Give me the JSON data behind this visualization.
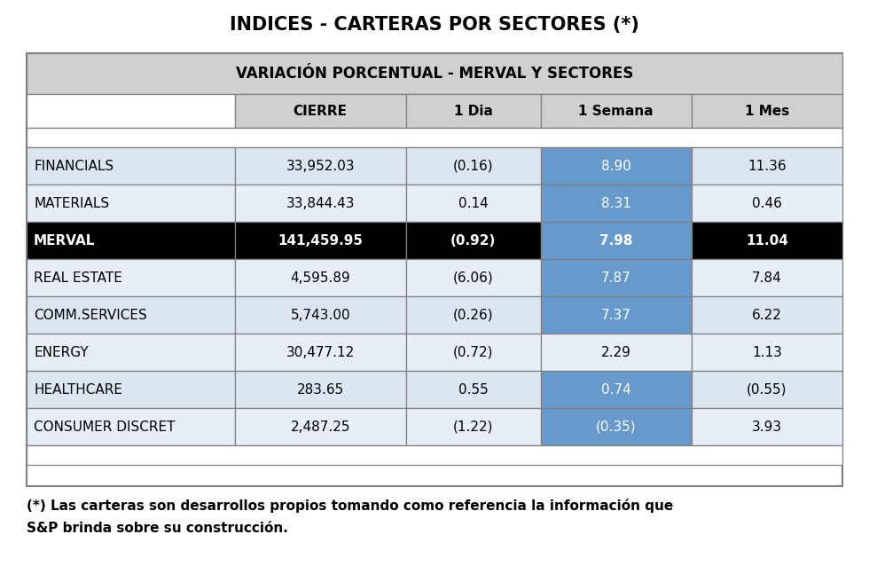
{
  "title": "INDICES - CARTERAS POR SECTORES (*)",
  "subtitle": "VARIACIÓN PORCENTUAL - MERVAL Y SECTORES",
  "col_headers": [
    "",
    "CIERRE",
    "1 Dia",
    "1 Semana",
    "1 Mes"
  ],
  "rows": [
    {
      "label": "FINANCIALS",
      "cierre": "33,952.03",
      "dia": "(0.16)",
      "semana": "8.90",
      "mes": "11.36",
      "is_merval": false,
      "semana_blue": true
    },
    {
      "label": "MATERIALS",
      "cierre": "33,844.43",
      "dia": "0.14",
      "semana": "8.31",
      "mes": "0.46",
      "is_merval": false,
      "semana_blue": true
    },
    {
      "label": "MERVAL",
      "cierre": "141,459.95",
      "dia": "(0.92)",
      "semana": "7.98",
      "mes": "11.04",
      "is_merval": true,
      "semana_blue": true
    },
    {
      "label": "REAL ESTATE",
      "cierre": "4,595.89",
      "dia": "(6.06)",
      "semana": "7.87",
      "mes": "7.84",
      "is_merval": false,
      "semana_blue": true
    },
    {
      "label": "COMM.SERVICES",
      "cierre": "5,743.00",
      "dia": "(0.26)",
      "semana": "7.37",
      "mes": "6.22",
      "is_merval": false,
      "semana_blue": true
    },
    {
      "label": "ENERGY",
      "cierre": "30,477.12",
      "dia": "(0.72)",
      "semana": "2.29",
      "mes": "1.13",
      "is_merval": false,
      "semana_blue": false
    },
    {
      "label": "HEALTHCARE",
      "cierre": "283.65",
      "dia": "0.55",
      "semana": "0.74",
      "mes": "(0.55)",
      "is_merval": false,
      "semana_blue": true
    },
    {
      "label": "CONSUMER DISCRET",
      "cierre": "2,487.25",
      "dia": "(1.22)",
      "semana": "(0.35)",
      "mes": "3.93",
      "is_merval": false,
      "semana_blue": true
    }
  ],
  "footnote_line1": "(*) Las carteras son desarrollos propios tomando como referencia la información que",
  "footnote_line2": "S&P brinda sobre su construcción.",
  "bg_color": "#ffffff",
  "header_bg": "#d0d0d0",
  "colhdr_bg": "#d0d0d0",
  "merval_bg": "#000000",
  "merval_fg": "#ffffff",
  "blue_cell": "#6699cc",
  "blue_cell_fg": "#ffffff",
  "row_bg": "#dce6f1",
  "row_bg2": "#e8eef6",
  "table_border": "#808080",
  "title_fontsize": 15,
  "subtitle_fontsize": 12,
  "header_fontsize": 11,
  "data_fontsize": 11,
  "footnote_fontsize": 11
}
